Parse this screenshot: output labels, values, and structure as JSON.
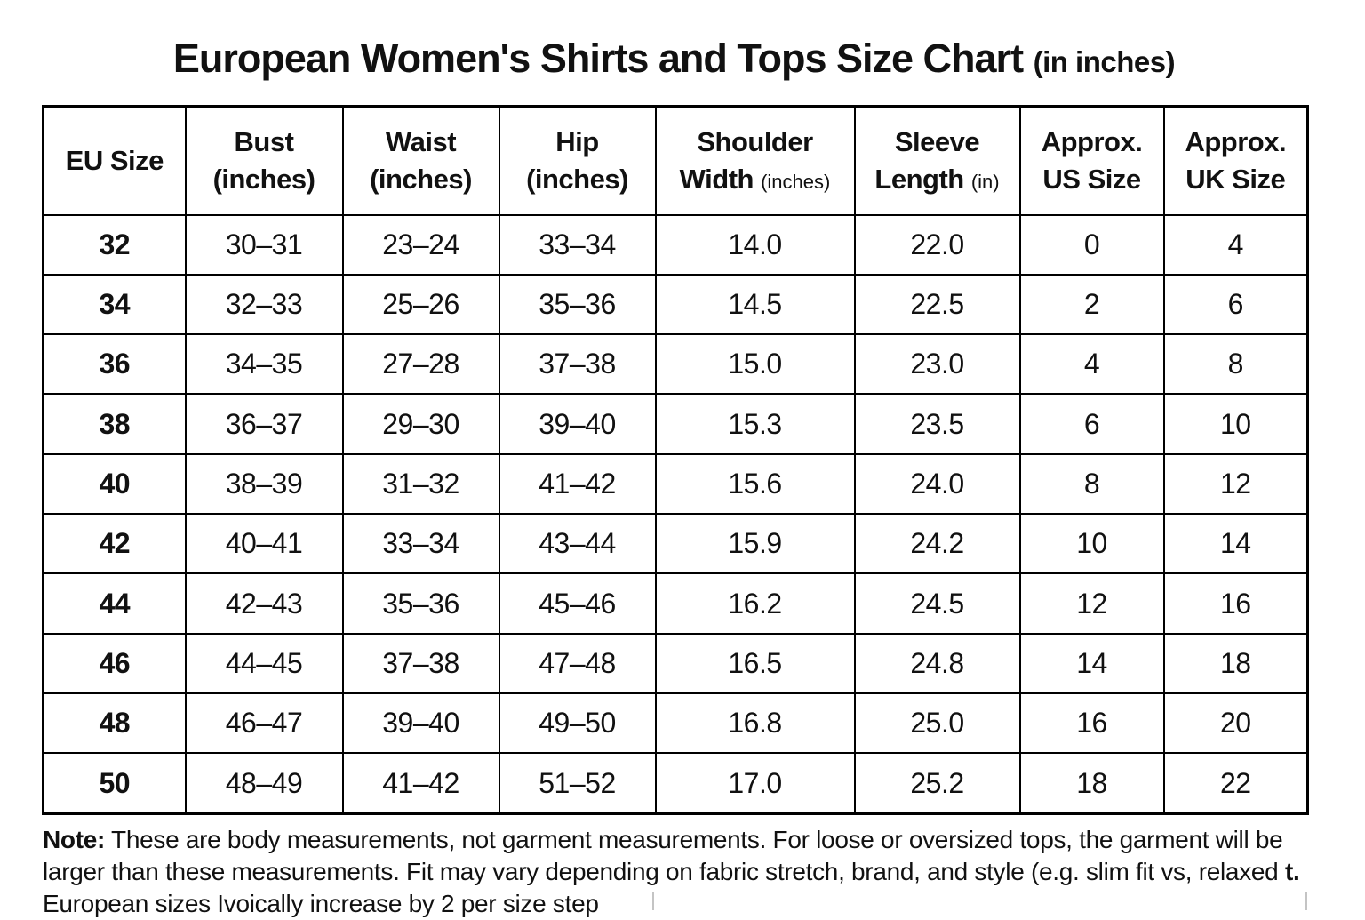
{
  "title": {
    "main": "European Women's Shirts and Tops Size Chart",
    "suffix": "(in inches)"
  },
  "chart_data": {
    "type": "table",
    "title": "European Women's Shirts and Tops Size Chart (in inches)",
    "columns": [
      "EU Size",
      "Bust (inches)",
      "Waist (inches)",
      "Hip (inches)",
      "Shoulder Width (inches)",
      "Sleeve Length (in)",
      "Approx. US Size",
      "Approx. UK Size"
    ],
    "rows": [
      [
        "32",
        "30–31",
        "23–24",
        "33–34",
        "14.0",
        "22.0",
        "0",
        "4"
      ],
      [
        "34",
        "32–33",
        "25–26",
        "35–36",
        "14.5",
        "22.5",
        "2",
        "6"
      ],
      [
        "36",
        "34–35",
        "27–28",
        "37–38",
        "15.0",
        "23.0",
        "4",
        "8"
      ],
      [
        "38",
        "36–37",
        "29–30",
        "39–40",
        "15.3",
        "23.5",
        "6",
        "10"
      ],
      [
        "40",
        "38–39",
        "31–32",
        "41–42",
        "15.6",
        "24.0",
        "8",
        "12"
      ],
      [
        "42",
        "40–41",
        "33–34",
        "43–44",
        "15.9",
        "24.2",
        "10",
        "14"
      ],
      [
        "44",
        "42–43",
        "35–36",
        "45–46",
        "16.2",
        "24.5",
        "12",
        "16"
      ],
      [
        "46",
        "44–45",
        "37–38",
        "47–48",
        "16.5",
        "24.8",
        "14",
        "18"
      ],
      [
        "48",
        "46–47",
        "39–40",
        "49–50",
        "16.8",
        "25.0",
        "16",
        "20"
      ],
      [
        "50",
        "48–49",
        "41–42",
        "51–52",
        "17.0",
        "25.2",
        "18",
        "22"
      ]
    ]
  },
  "header": {
    "eu": "EU Size",
    "bust_1": "Bust",
    "bust_2": "(inches)",
    "waist_1": "Waist",
    "waist_2": "(inches)",
    "hip_1": "Hip",
    "hip_2": "(inches)",
    "shoulder_1": "Shoulder",
    "shoulder_2": "Width",
    "shoulder_unit": "(inches)",
    "sleeve_1": "Sleeve",
    "sleeve_2": "Length",
    "sleeve_unit": "(in)",
    "us_1": "Approx.",
    "us_2": "US Size",
    "uk_1": "Approx.",
    "uk_2": "UK Size"
  },
  "note": {
    "label": "Note:",
    "line1": " These are body measurements, not garment measurements. For loose or oversized tops, the garment will be",
    "line2": "larger than these measurements. Fit may vary depending on fabric stretch, brand, and style (e.g. slim fit vs, relaxed ",
    "line2_bold": "t.",
    "line3": "European sizes Ivoically increase by 2 per size step"
  }
}
